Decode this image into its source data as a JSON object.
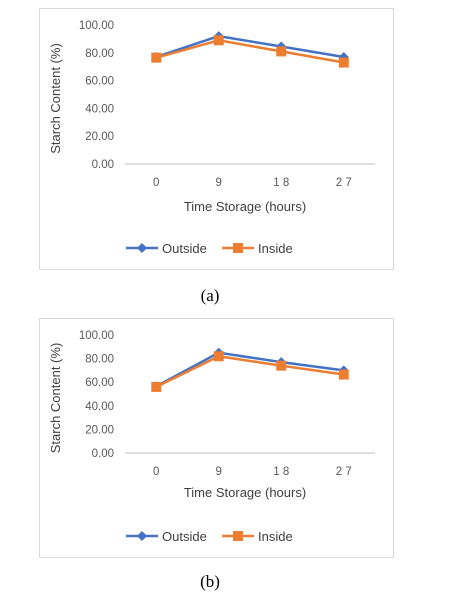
{
  "colors": {
    "outside": "#4472c4",
    "inside": "#ed7d31",
    "grid": "#d9d9d9",
    "axis": "#bfbfbf"
  },
  "captions": {
    "a": "(a)",
    "b": "(b)"
  },
  "chart_data": [
    {
      "type": "line",
      "panel": "a",
      "title": "",
      "xlabel": "Time Storage (hours)",
      "ylabel": "Starch Content (%)",
      "categories": [
        "0",
        "9",
        "1 8",
        "2 7"
      ],
      "yticks": [
        "0.00",
        "20.00",
        "40.00",
        "60.00",
        "80.00",
        "100.00"
      ],
      "ylim": [
        0,
        100
      ],
      "grid": false,
      "legend": "bottom",
      "series": [
        {
          "name": "Outside",
          "marker": "diamond",
          "color": "#4472c4",
          "values": [
            77,
            92,
            84.5,
            77
          ]
        },
        {
          "name": "Inside",
          "marker": "square",
          "color": "#ed7d31",
          "values": [
            76.5,
            89,
            81,
            73
          ]
        }
      ]
    },
    {
      "type": "line",
      "panel": "b",
      "title": "",
      "xlabel": "Time Storage (hours)",
      "ylabel": "Starch Content (%)",
      "categories": [
        "0",
        "9",
        "1 8",
        "2 7"
      ],
      "yticks": [
        "0.00",
        "20.00",
        "40.00",
        "60.00",
        "80.00",
        "100.00"
      ],
      "ylim": [
        0,
        100
      ],
      "grid": false,
      "legend": "bottom",
      "series": [
        {
          "name": "Outside",
          "marker": "diamond",
          "color": "#4472c4",
          "values": [
            56.5,
            85,
            77,
            70
          ]
        },
        {
          "name": "Inside",
          "marker": "square",
          "color": "#ed7d31",
          "values": [
            56,
            82,
            74,
            66.5
          ]
        }
      ]
    }
  ]
}
